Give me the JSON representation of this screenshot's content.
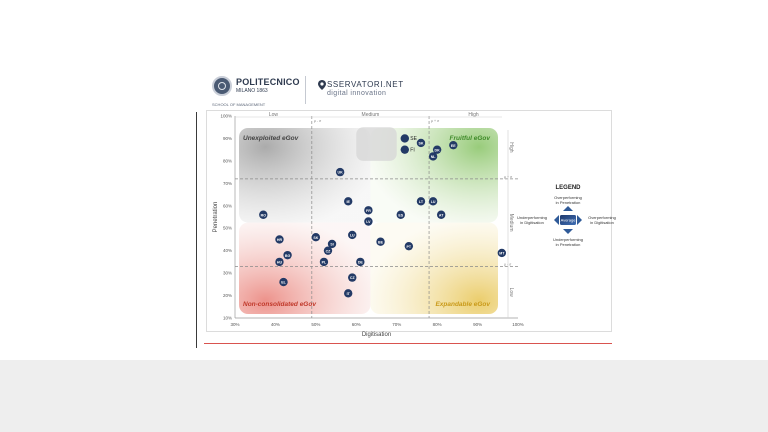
{
  "branding": {
    "polimi_name": "POLITECNICO",
    "polimi_city": "MILANO 1863",
    "polimi_school": "SCHOOL OF MANAGEMENT",
    "osservatori_name": "SSERVATORI.NET",
    "osservatori_sub": "digital innovation"
  },
  "legend": {
    "title": "LEGEND",
    "top": [
      "Overperforming",
      "in Penetration"
    ],
    "left": [
      "Underperforming",
      "in Digitisation"
    ],
    "right": [
      "Overperforming",
      "in Digitisation"
    ],
    "bottom": [
      "Underperforming",
      "in Penetration"
    ],
    "center": "Average"
  },
  "colors": {
    "point": "#233a66",
    "q_unexploited": "#9a9a9a",
    "q_fruitful": "#8cc56a",
    "q_nonconsolidated": "#e7837a",
    "q_expandable": "#e8c85a",
    "label_fruitful": "#3f8a2a",
    "label_nonconsolidated": "#c0392b",
    "label_expandable": "#c99a1a"
  },
  "chart_data": {
    "type": "scatter",
    "xlabel": "Digitisation",
    "ylabel": "Penetration",
    "xlim": [
      30,
      100
    ],
    "ylim": [
      10,
      100
    ],
    "x_ticks": [
      "30%",
      "40%",
      "50%",
      "60%",
      "70%",
      "80%",
      "90%",
      "100%"
    ],
    "y_ticks": [
      "10%",
      "20%",
      "30%",
      "40%",
      "50%",
      "60%",
      "70%",
      "80%",
      "90%",
      "100%"
    ],
    "column_bands": [
      "Low",
      "Medium",
      "High"
    ],
    "row_bands": [
      "High",
      "Medium",
      "Low"
    ],
    "thresholds": {
      "x": [
        49,
        78
      ],
      "y": [
        33,
        72
      ]
    },
    "threshold_labels": {
      "x_low": "μ - σ",
      "x_high": "μ + σ",
      "y_high": "μ + σ",
      "y_low": "μ - σ"
    },
    "quadrants": {
      "top_left": "Unexploited eGov",
      "top_right": "Fruitful eGov",
      "bottom_left": "Non-consolidated eGov",
      "bottom_right": "Expandable eGov"
    },
    "highlight": [
      "SE",
      "FI"
    ],
    "points": [
      {
        "label": "SE",
        "x": 72,
        "y": 90
      },
      {
        "label": "FI",
        "x": 72,
        "y": 85
      },
      {
        "label": "SK",
        "x": 76,
        "y": 88
      },
      {
        "label": "DK",
        "x": 80,
        "y": 85
      },
      {
        "label": "EE",
        "x": 84,
        "y": 87
      },
      {
        "label": "NL",
        "x": 79,
        "y": 82
      },
      {
        "label": "UK",
        "x": 56,
        "y": 75
      },
      {
        "label": "IE",
        "x": 58,
        "y": 62
      },
      {
        "label": "FR",
        "x": 63,
        "y": 58
      },
      {
        "label": "LT",
        "x": 76,
        "y": 62
      },
      {
        "label": "LU",
        "x": 79,
        "y": 62
      },
      {
        "label": "ES",
        "x": 71,
        "y": 56
      },
      {
        "label": "AT",
        "x": 81,
        "y": 56
      },
      {
        "label": "RO",
        "x": 37,
        "y": 56
      },
      {
        "label": "LV",
        "x": 63,
        "y": 53
      },
      {
        "label": "HR",
        "x": 41,
        "y": 45
      },
      {
        "label": "SK",
        "x": 50,
        "y": 46
      },
      {
        "label": "LU",
        "x": 59,
        "y": 47
      },
      {
        "label": "SI",
        "x": 54,
        "y": 43
      },
      {
        "label": "BE",
        "x": 66,
        "y": 44
      },
      {
        "label": "PT",
        "x": 73,
        "y": 42
      },
      {
        "label": "CZ",
        "x": 53,
        "y": 40
      },
      {
        "label": "BG",
        "x": 43,
        "y": 38
      },
      {
        "label": "HU",
        "x": 41,
        "y": 35
      },
      {
        "label": "PL",
        "x": 52,
        "y": 35
      },
      {
        "label": "DE",
        "x": 61,
        "y": 35
      },
      {
        "label": "MT",
        "x": 96,
        "y": 39
      },
      {
        "label": "EL",
        "x": 42,
        "y": 26
      },
      {
        "label": "CZ",
        "x": 59,
        "y": 28
      },
      {
        "label": "IT",
        "x": 58,
        "y": 21
      }
    ]
  }
}
